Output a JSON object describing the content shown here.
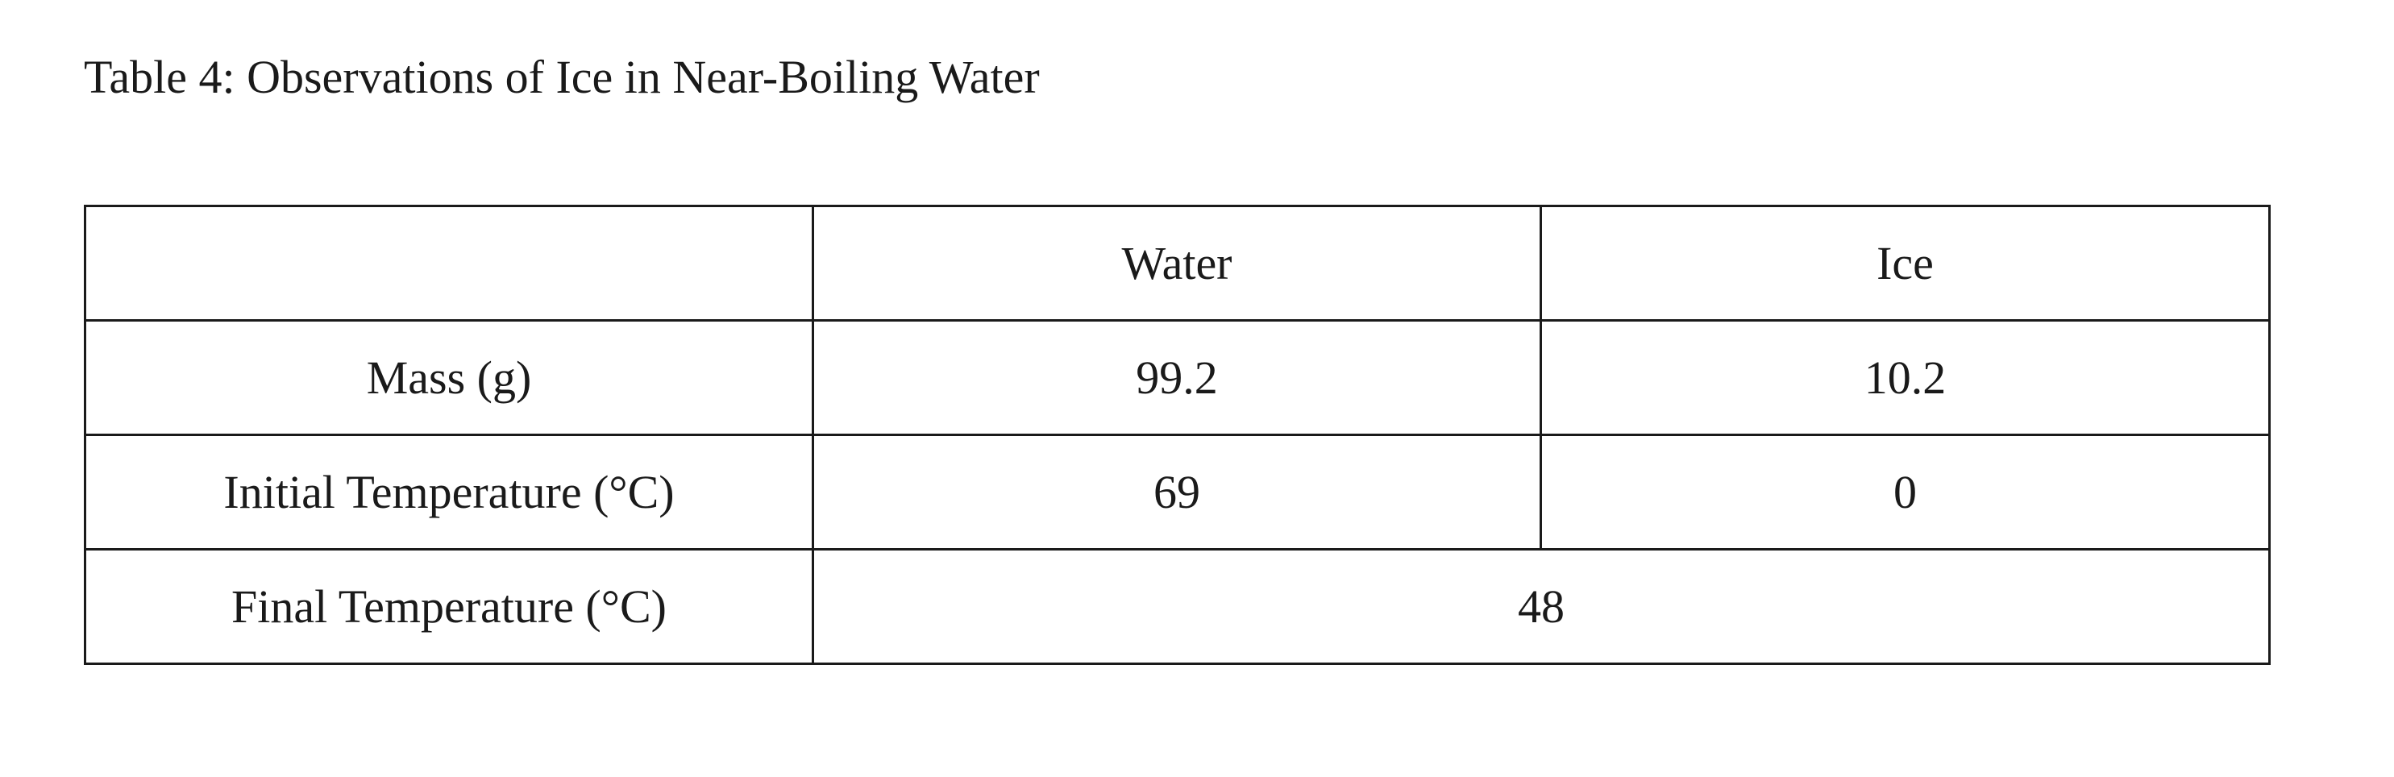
{
  "document": {
    "caption": "Table 4: Observations of Ice in Near-Boiling Water"
  },
  "table": {
    "header": {
      "corner": "",
      "columns": [
        "Water",
        "Ice"
      ]
    },
    "rows": [
      {
        "label": "Mass (g)",
        "water": "99.2",
        "ice": "10.2"
      },
      {
        "label": "Initial Temperature (°C)",
        "water": "69",
        "ice": "0"
      }
    ],
    "final_row": {
      "label": "Final Temperature (°C)",
      "value": "48"
    }
  }
}
